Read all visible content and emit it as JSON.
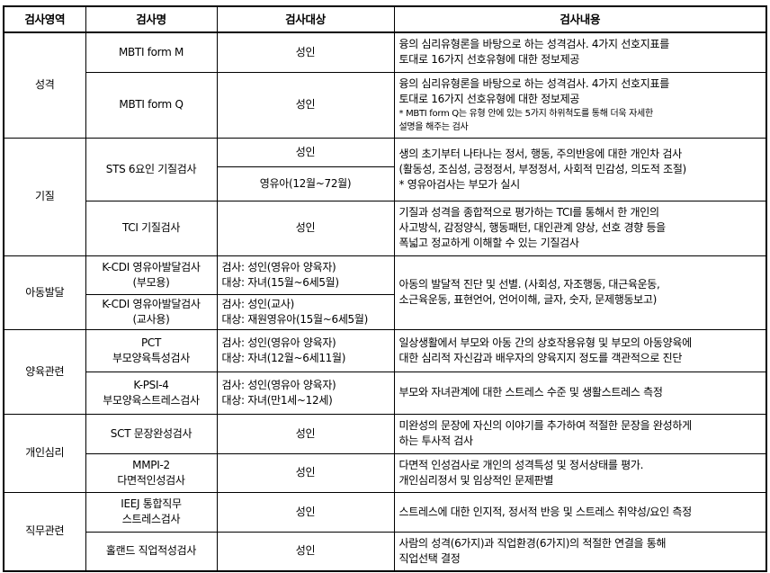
{
  "headers": [
    "검사영역",
    "검사명",
    "검사대상",
    "검사내용"
  ],
  "sections": [
    {
      "area": "성격",
      "tests": [
        {
          "name": [
            "MBTI form M"
          ],
          "target": [
            "성인"
          ],
          "content": [
            "융의 심리유형론을 바탕으로 하는 성격검사. 4가지 선호지표를",
            "토대로 16가지 선호유형에 대한 정보제공"
          ]
        },
        {
          "name": [
            "MBTI form Q"
          ],
          "target": [
            "성인"
          ],
          "content": [
            "융의 심리유형론을 바탕으로 하는 성격검사. 4가지 선호지표를",
            "토대로 16가지 선호유형에 대한 정보제공"
          ],
          "note": [
            "* MBTI form Q는 유형 안에 있는 5가지 하위척도를 통해 더욱 자세한",
            "설명을 해주는 검사"
          ]
        }
      ]
    },
    {
      "area": "기질",
      "tests": [
        {
          "name": [
            "STS 6요인 기질검사"
          ],
          "targets": [
            "성인",
            "영유아(12월~72월)"
          ],
          "content": [
            "생의 초기부터 나타나는 정서, 행동, 주의반응에 대한 개인차 검사",
            "(활동성, 조심성, 긍정정서, 부정정서, 사회적 민감성, 의도적 조절)",
            "* 영유아검사는 부모가 실시"
          ]
        },
        {
          "name": [
            "TCI 기질검사"
          ],
          "target": [
            "성인"
          ],
          "content": [
            "기질과 성격을 종합적으로 평가하는 TCI를 통해서 한 개인의",
            "사고방식, 감정양식, 행동패턴, 대인관계 양상, 선호 경향 등을",
            "폭넓고 정교하게 이해할 수 있는 기질검사"
          ]
        }
      ]
    },
    {
      "area": "아동발달",
      "content": [
        "아동의 발달적 진단 및 선별. (사회성, 자조행동, 대근육운동,",
        "소근육운동, 표현언어, 언어이해, 글자, 숫자, 문제행동보고)"
      ],
      "tests": [
        {
          "name": [
            "K-CDI 영유아발달검사",
            "(부모용)"
          ],
          "target": [
            "검사: 성인(영유아 양육자)",
            "대상: 자녀(15월~6세5월)"
          ]
        },
        {
          "name": [
            "K-CDI 영유아발달검사",
            "(교사용)"
          ],
          "target": [
            "검사: 성인(교사)",
            "대상: 재원영유아(15월~6세5월)"
          ]
        }
      ]
    },
    {
      "area": "양육관련",
      "tests": [
        {
          "name": [
            "PCT",
            "부모양육특성검사"
          ],
          "target": [
            "검사: 성인(영유아 양육자)",
            "대상: 자녀(12월~6세11월)"
          ],
          "content": [
            "일상생활에서 부모와 아동 간의 상호작용유형 및 부모의 아동양육에",
            "대한 심리적 자신감과 배우자의 양육지지 정도를 객관적으로 진단"
          ]
        },
        {
          "name": [
            "K-PSI-4",
            "부모양육스트레스검사"
          ],
          "target": [
            "검사: 성인(영유아 양육자)",
            "대상: 자녀(만1세~12세)"
          ],
          "content": [
            "부모와 자녀관계에 대한 스트레스 수준 및 생활스트레스 측정"
          ]
        }
      ]
    },
    {
      "area": "개인심리",
      "tests": [
        {
          "name": [
            "SCT 문장완성검사"
          ],
          "target": [
            "성인"
          ],
          "content": [
            "미완성의 문장에 자신의 이야기를 추가하여 적절한 문장을 완성하게",
            "하는 투사적 검사"
          ]
        },
        {
          "name": [
            "MMPI-2",
            "다면적인성검사"
          ],
          "target": [
            "성인"
          ],
          "content": [
            "다면적 인성검사로 개인의 성격특성 및 정서상태를 평가.",
            "개인심리정서 및 임상적인 문제판별"
          ]
        }
      ]
    },
    {
      "area": "직무관련",
      "tests": [
        {
          "name": [
            "IEEJ 통합직무",
            "스트레스검사"
          ],
          "target": [
            "성인"
          ],
          "content": [
            "스트레스에 대한 인지적, 정서적 반응 및 스트레스 취약성/요인 측정"
          ]
        },
        {
          "name": [
            "홀랜드 직업적성검사"
          ],
          "target": [
            "성인"
          ],
          "content": [
            "사람의 성격(6가지)과 직업환경(6가지)의 적절한 연결을 통해",
            "직업선택 결정"
          ]
        }
      ]
    }
  ]
}
